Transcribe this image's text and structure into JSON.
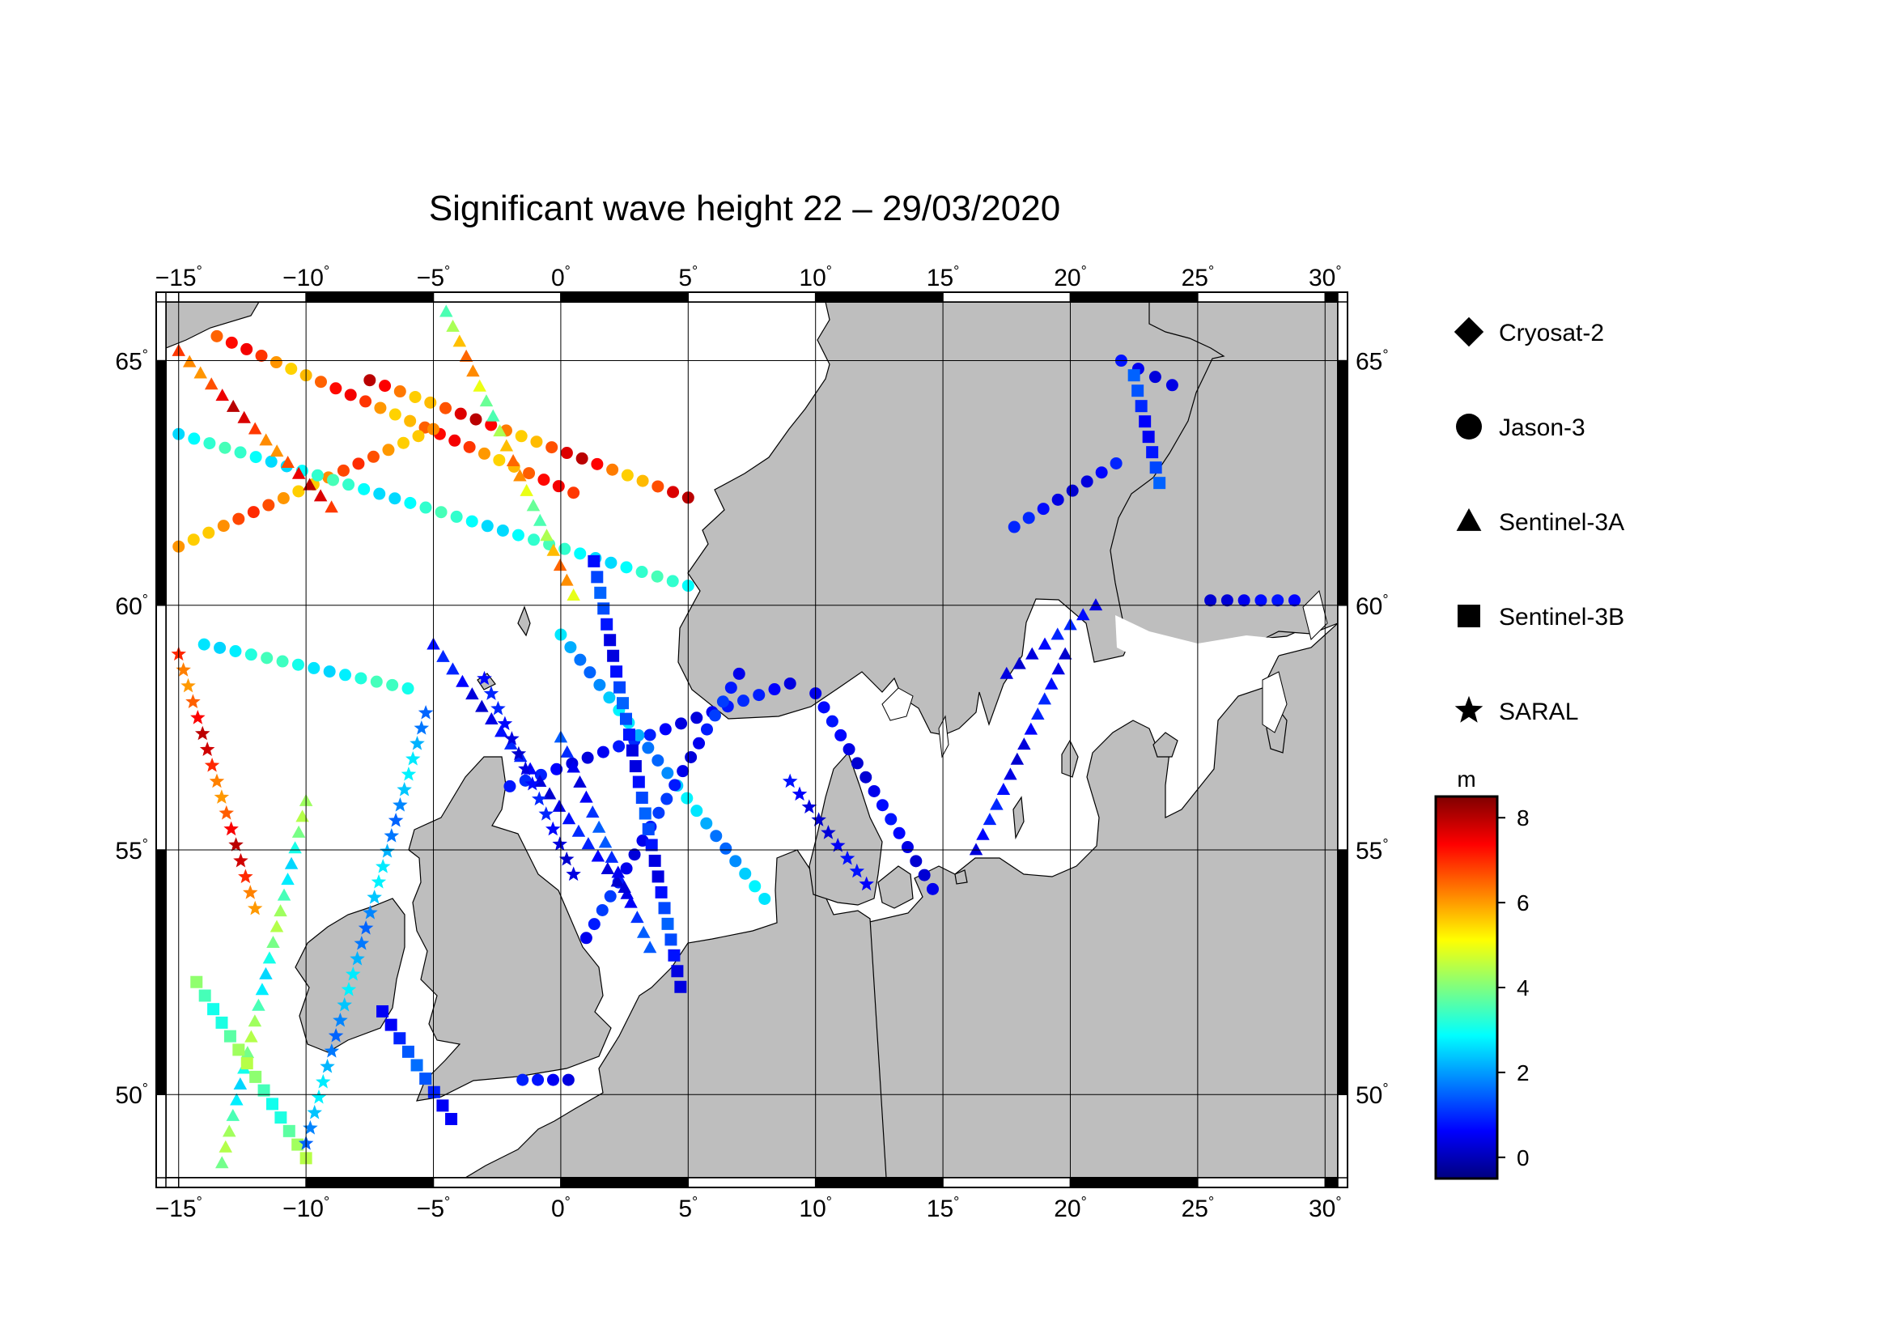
{
  "title": "Significant wave height 22 – 29/03/2020",
  "map": {
    "lon_range": [
      -15.5,
      30.5
    ],
    "lat_range": [
      48.3,
      66.2
    ],
    "lon_ticks": [
      -15,
      -10,
      -5,
      0,
      5,
      10,
      15,
      20,
      25,
      30
    ],
    "lat_ticks": [
      50,
      55,
      60,
      65
    ],
    "lon_tick_labels": [
      "−15",
      "−10",
      "−5",
      "0",
      "5",
      "10",
      "15",
      "20",
      "25",
      "30"
    ],
    "lat_tick_labels": [
      "50",
      "55",
      "60",
      "65"
    ],
    "degree_symbol": "°",
    "land_color": "#bebebe",
    "sea_color": "#ffffff"
  },
  "legend": [
    {
      "name": "Cryosat-2",
      "symbol": "diamond"
    },
    {
      "name": "Jason-3",
      "symbol": "circle"
    },
    {
      "name": "Sentinel-3A",
      "symbol": "triangle"
    },
    {
      "name": "Sentinel-3B",
      "symbol": "square"
    },
    {
      "name": "SARAL",
      "symbol": "star"
    }
  ],
  "colorbar": {
    "unit": "m",
    "min": -0.5,
    "max": 8.5,
    "ticks": [
      0,
      2,
      4,
      6,
      8
    ],
    "tick_labels": [
      "0",
      "2",
      "4",
      "6",
      "8"
    ],
    "colormap": [
      "#00007f",
      "#0000ff",
      "#007fff",
      "#00ffff",
      "#7fff7f",
      "#ffff00",
      "#ff7f00",
      "#ff0000",
      "#7f0000"
    ]
  },
  "chart_data": {
    "type": "scatter",
    "value_name": "Significant wave height",
    "unit": "m",
    "tracks": [
      {
        "satellite": "Jason-3",
        "from": [
          -13.5,
          65.5
        ],
        "to": [
          0.5,
          62.3
        ],
        "values_range": [
          5.5,
          7.5
        ]
      },
      {
        "satellite": "Jason-3",
        "from": [
          -7.5,
          64.6
        ],
        "to": [
          5,
          62.2
        ],
        "values_range": [
          5.5,
          8.0
        ]
      },
      {
        "satellite": "Jason-3",
        "from": [
          -15,
          61.2
        ],
        "to": [
          -5,
          63.6
        ],
        "values_range": [
          5.5,
          7.0
        ]
      },
      {
        "satellite": "Jason-3",
        "from": [
          -15,
          63.5
        ],
        "to": [
          5.0,
          60.4
        ],
        "values_range": [
          2.5,
          3.5
        ]
      },
      {
        "satellite": "Jason-3",
        "from": [
          -2,
          56.3
        ],
        "to": [
          9,
          58.4
        ],
        "values_range": [
          0.3,
          1.0
        ]
      },
      {
        "satellite": "Jason-3",
        "from": [
          0,
          59.4
        ],
        "to": [
          8,
          54.0
        ],
        "values_range": [
          1.5,
          2.8
        ]
      },
      {
        "satellite": "Jason-3",
        "from": [
          -14,
          59.2
        ],
        "to": [
          -6,
          58.3
        ],
        "values_range": [
          2.5,
          3.5
        ]
      },
      {
        "satellite": "Jason-3",
        "from": [
          1,
          53.2
        ],
        "to": [
          7,
          58.6
        ],
        "values_range": [
          0.3,
          1.2
        ]
      },
      {
        "satellite": "Jason-3",
        "from": [
          17.8,
          61.6
        ],
        "to": [
          21.8,
          62.9
        ],
        "values_range": [
          0.2,
          1.0
        ]
      },
      {
        "satellite": "Jason-3",
        "from": [
          22,
          65.0
        ],
        "to": [
          24,
          64.5
        ],
        "values_range": [
          0.3,
          1.0
        ]
      },
      {
        "satellite": "Jason-3",
        "from": [
          25.5,
          60.1
        ],
        "to": [
          28.8,
          60.1
        ],
        "values_range": [
          0.2,
          0.8
        ]
      },
      {
        "satellite": "Jason-3",
        "from": [
          10,
          58.2
        ],
        "to": [
          14.6,
          54.2
        ],
        "values_range": [
          0.2,
          0.8
        ]
      },
      {
        "satellite": "Jason-3",
        "from": [
          -1.5,
          50.3
        ],
        "to": [
          0.3,
          50.3
        ],
        "values_range": [
          0.3,
          0.9
        ]
      },
      {
        "satellite": "Sentinel-3A",
        "from": [
          -15,
          65.2
        ],
        "to": [
          -9,
          62.0
        ],
        "values_range": [
          6.0,
          8.0
        ]
      },
      {
        "satellite": "Sentinel-3A",
        "from": [
          -4.5,
          66.0
        ],
        "to": [
          0.5,
          60.2
        ],
        "values_range": [
          3.5,
          6.5
        ]
      },
      {
        "satellite": "Sentinel-3A",
        "from": [
          -5,
          59.2
        ],
        "to": [
          2.6,
          54.1
        ],
        "values_range": [
          0.2,
          1.0
        ]
      },
      {
        "satellite": "Sentinel-3A",
        "from": [
          0,
          57.3
        ],
        "to": [
          3.5,
          53.0
        ],
        "values_range": [
          0.3,
          1.5
        ]
      },
      {
        "satellite": "Sentinel-3A",
        "from": [
          17.5,
          58.6
        ],
        "to": [
          21,
          60.0
        ],
        "values_range": [
          0.2,
          1.0
        ]
      },
      {
        "satellite": "Sentinel-3A",
        "from": [
          16.3,
          55.0
        ],
        "to": [
          19.8,
          59.0
        ],
        "values_range": [
          0.2,
          1.0
        ]
      },
      {
        "satellite": "Sentinel-3A",
        "from": [
          -10,
          56.0
        ],
        "to": [
          -13.3,
          48.6
        ],
        "values_range": [
          2.5,
          4.5
        ]
      },
      {
        "satellite": "Sentinel-3B",
        "from": [
          -14.3,
          52.3
        ],
        "to": [
          -10,
          48.7
        ],
        "values_range": [
          3.0,
          4.5
        ]
      },
      {
        "satellite": "Sentinel-3B",
        "from": [
          -7,
          51.7
        ],
        "to": [
          -4.3,
          49.5
        ],
        "values_range": [
          0.5,
          1.6
        ]
      },
      {
        "satellite": "Sentinel-3B",
        "from": [
          1.3,
          60.9
        ],
        "to": [
          4.7,
          52.2
        ],
        "values_range": [
          0.3,
          1.5
        ]
      },
      {
        "satellite": "Sentinel-3B",
        "from": [
          22.5,
          64.7
        ],
        "to": [
          23.5,
          62.5
        ],
        "values_range": [
          0.5,
          1.5
        ]
      },
      {
        "satellite": "SARAL",
        "from": [
          -15,
          59.0
        ],
        "to": [
          -12,
          53.8
        ],
        "values_range": [
          6.0,
          8.0
        ]
      },
      {
        "satellite": "SARAL",
        "from": [
          -10,
          49.0
        ],
        "to": [
          -5.3,
          57.8
        ],
        "values_range": [
          1.5,
          2.8
        ]
      },
      {
        "satellite": "SARAL",
        "from": [
          -3,
          58.5
        ],
        "to": [
          0.5,
          54.5
        ],
        "values_range": [
          0.2,
          1.0
        ]
      },
      {
        "satellite": "SARAL",
        "from": [
          9,
          56.4
        ],
        "to": [
          12.0,
          54.3
        ],
        "values_range": [
          0.2,
          0.8
        ]
      }
    ]
  }
}
